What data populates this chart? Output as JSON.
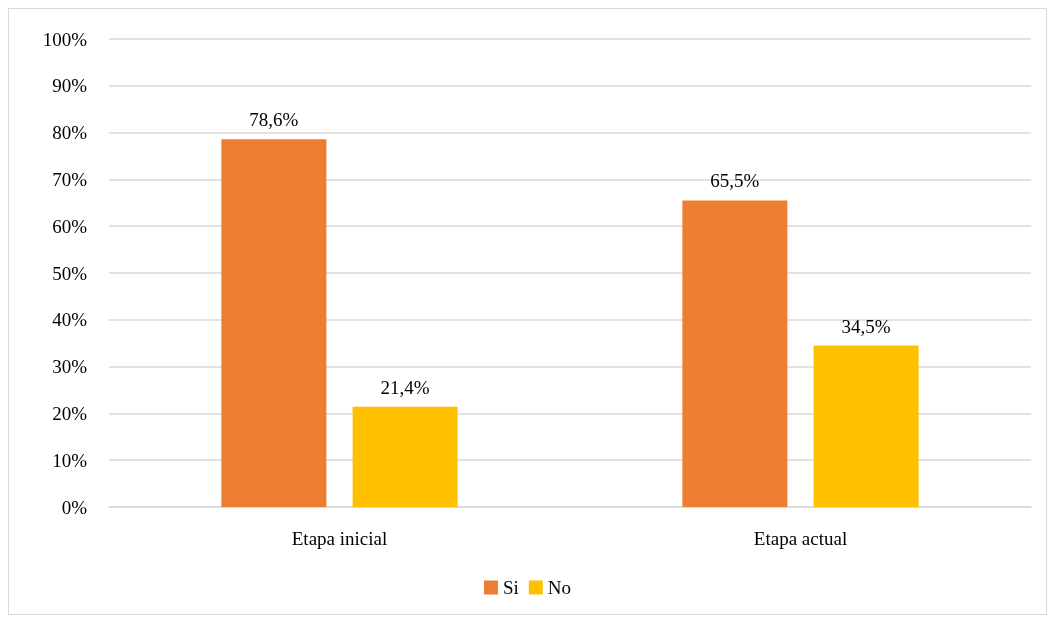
{
  "chart_data": {
    "type": "bar",
    "categories": [
      "Etapa inicial",
      "Etapa actual"
    ],
    "series": [
      {
        "name": "Si",
        "color": "#ed7d31",
        "values": [
          78.6,
          65.5
        ],
        "value_labels": [
          "78,6%",
          "65,5%"
        ]
      },
      {
        "name": "No",
        "color": "#ffc000",
        "values": [
          21.4,
          34.5
        ],
        "value_labels": [
          "21,4%",
          "34,5%"
        ]
      }
    ],
    "ylim": [
      0,
      100
    ],
    "yticks": [
      {
        "value": 0,
        "label": "0%"
      },
      {
        "value": 10,
        "label": "10%"
      },
      {
        "value": 20,
        "label": "20%"
      },
      {
        "value": 30,
        "label": "30%"
      },
      {
        "value": 40,
        "label": "40%"
      },
      {
        "value": 50,
        "label": "50%"
      },
      {
        "value": 60,
        "label": "60%"
      },
      {
        "value": 70,
        "label": "70%"
      },
      {
        "value": 80,
        "label": "80%"
      },
      {
        "value": 90,
        "label": "90%"
      },
      {
        "value": 100,
        "label": "100%"
      }
    ],
    "grid": "y",
    "legend": "bottom"
  }
}
